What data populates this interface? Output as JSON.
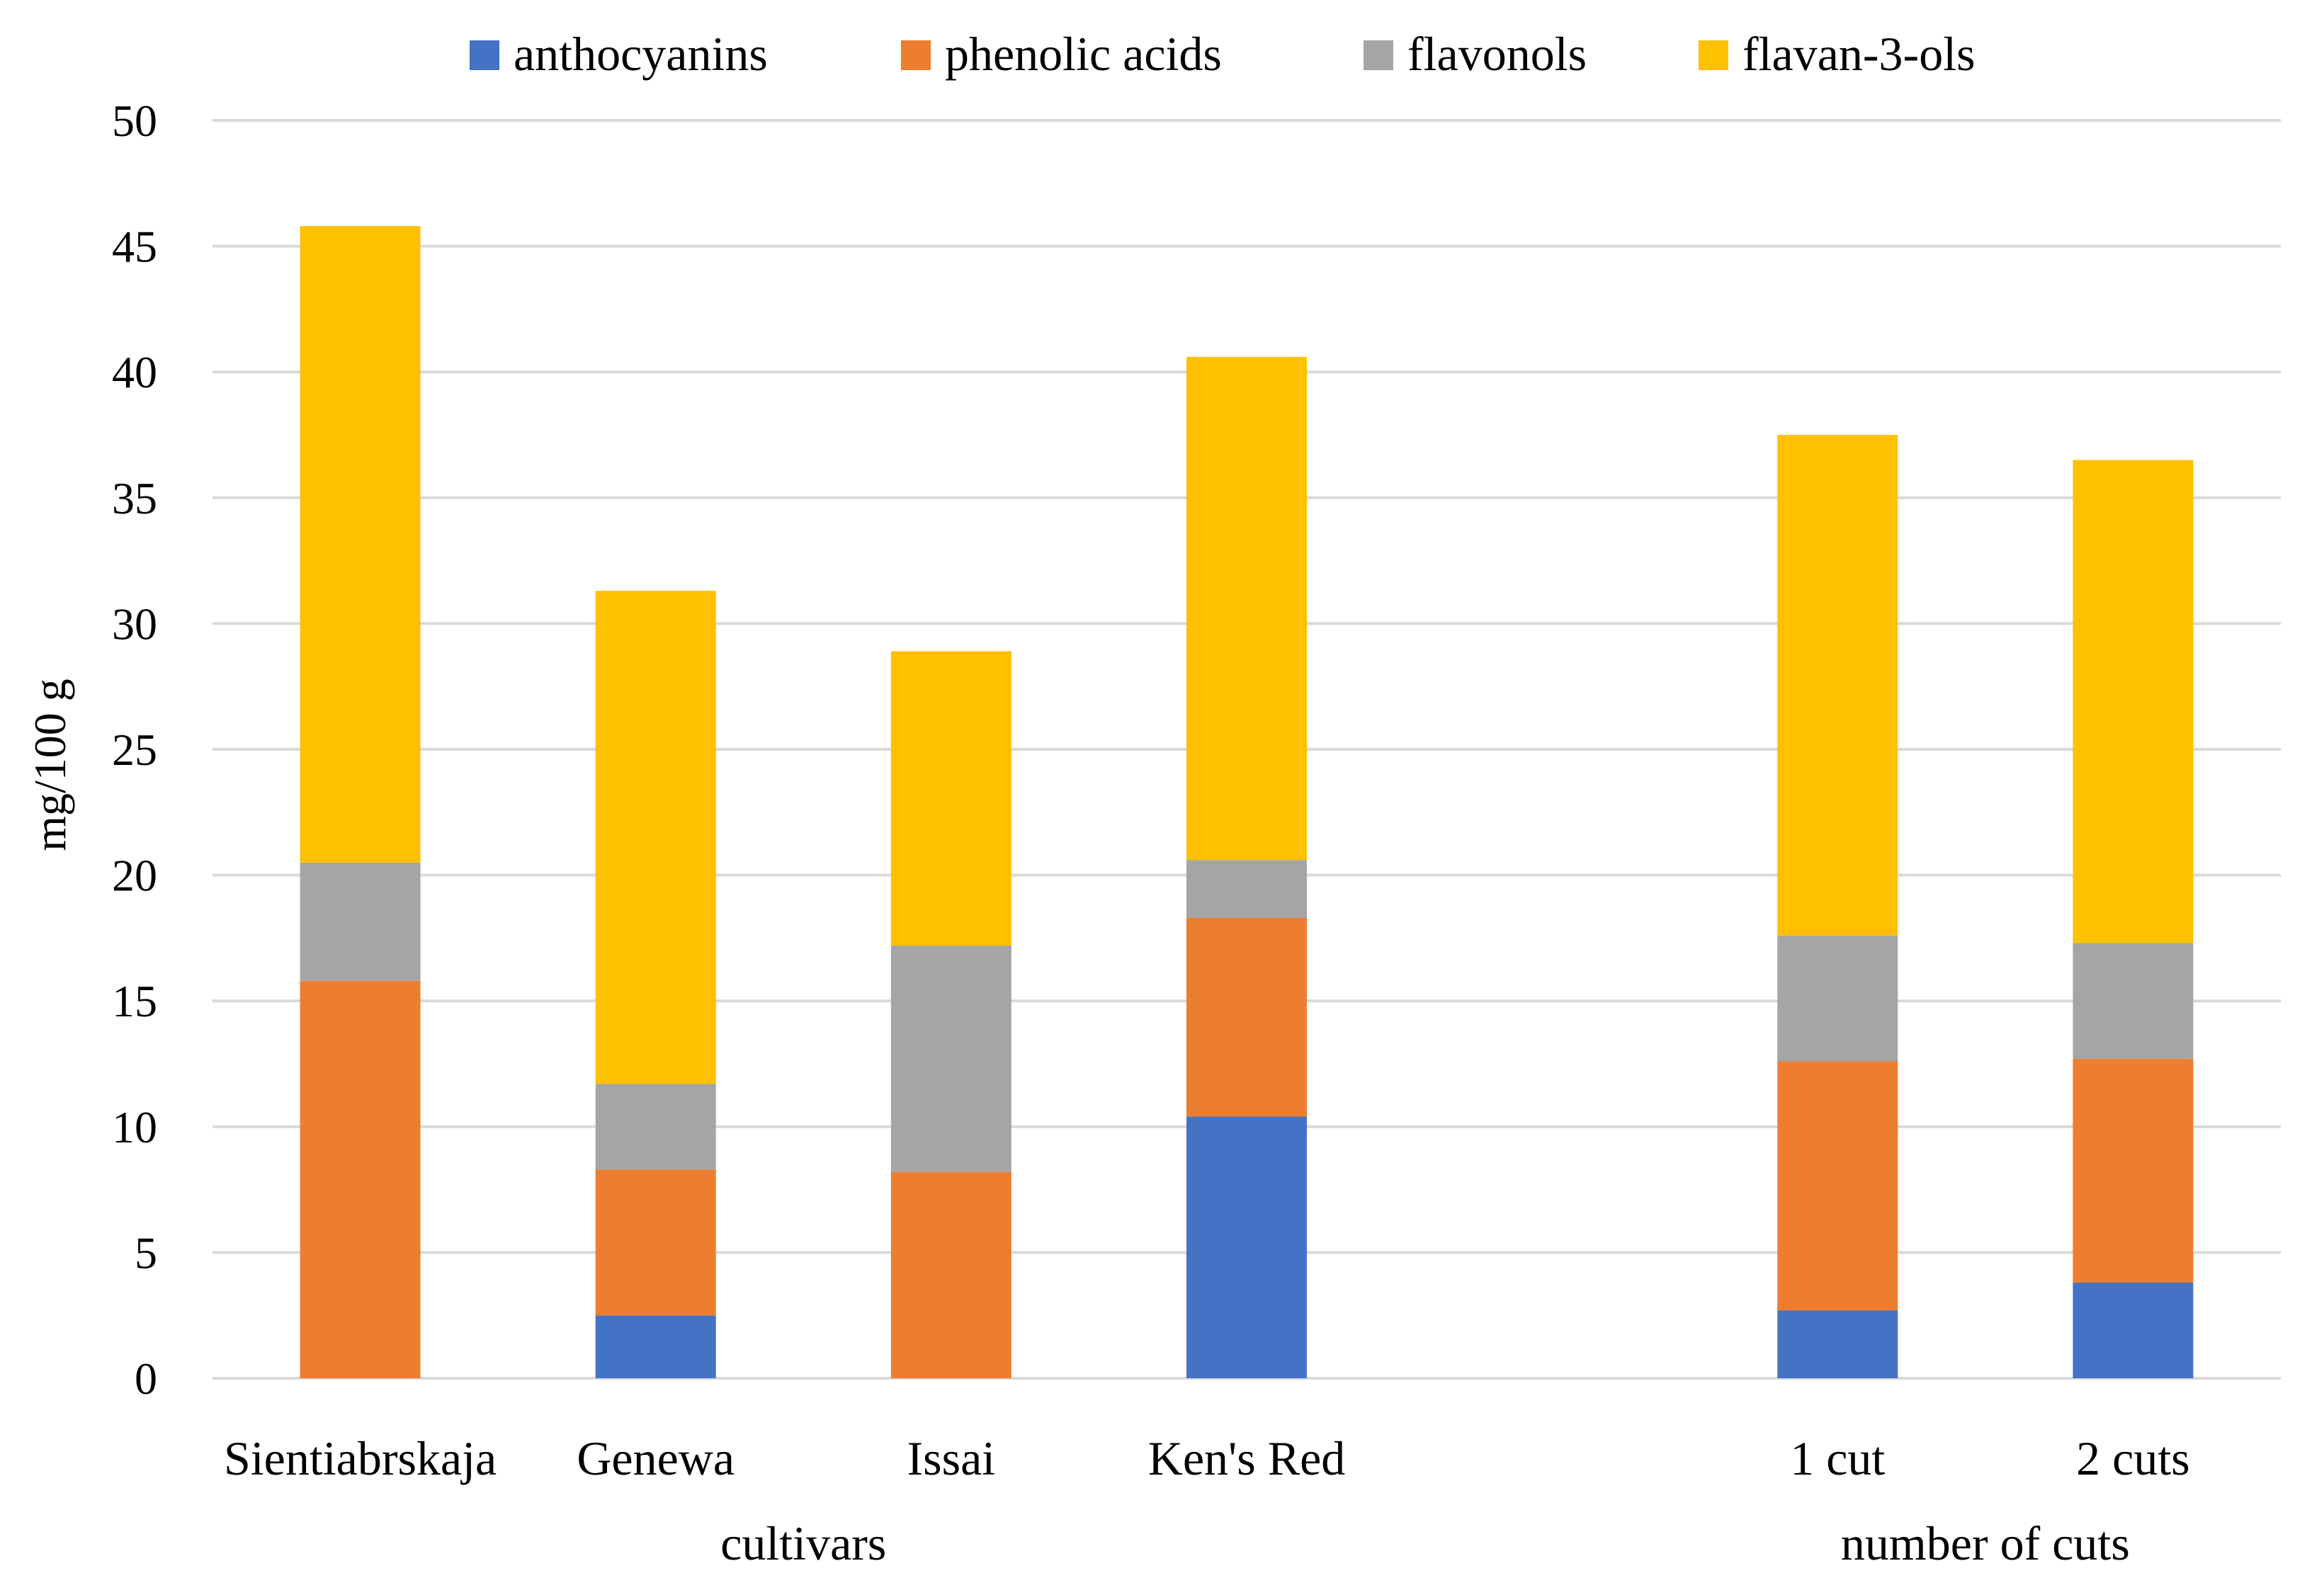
{
  "chart_data": {
    "type": "bar",
    "stacked": true,
    "title": "",
    "xlabel": "",
    "ylabel": "mg/100 g",
    "ylim": [
      0,
      50
    ],
    "yticks": [
      0,
      5,
      10,
      15,
      20,
      25,
      30,
      35,
      40,
      45,
      50
    ],
    "ytick_labels": [
      "0",
      "5",
      "10",
      "15",
      "20",
      "25",
      "30",
      "35",
      "40",
      "45",
      "50"
    ],
    "grid": true,
    "legend_position": "top",
    "categories": [
      "Sientiabrskaja",
      "Genewa",
      "Issai",
      "Ken's Red",
      "",
      "1 cut",
      "2 cuts"
    ],
    "groups": [
      {
        "label": "cultivars",
        "categories": [
          "Sientiabrskaja",
          "Genewa",
          "Issai",
          "Ken's Red"
        ]
      },
      {
        "label": "number of cuts",
        "categories": [
          "1 cut",
          "2 cuts"
        ]
      }
    ],
    "series": [
      {
        "name": "anthocyanins",
        "color": "#4472c4",
        "values": [
          0,
          2.5,
          0,
          10.4,
          0,
          2.7,
          3.8
        ]
      },
      {
        "name": "phenolic acids",
        "color": "#ed7d31",
        "values": [
          15.8,
          5.8,
          8.2,
          7.9,
          0,
          9.9,
          8.9
        ]
      },
      {
        "name": "flavonols",
        "color": "#a5a5a5",
        "values": [
          4.7,
          3.4,
          9.0,
          2.3,
          0,
          5.0,
          4.6
        ]
      },
      {
        "name": "flavan-3-ols",
        "color": "#ffc000",
        "values": [
          25.3,
          19.6,
          11.7,
          20.0,
          0,
          19.9,
          19.2
        ]
      }
    ]
  }
}
